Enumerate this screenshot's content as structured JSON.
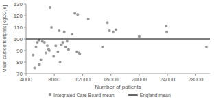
{
  "chart_data": {
    "type": "scatter",
    "x_label": "Number of patients",
    "y_label": "Mean carbon footprint [kgCO₂e]",
    "xlim": [
      4000,
      30000
    ],
    "xticks": [
      4000,
      8000,
      12000,
      16000,
      20000,
      24000,
      28000
    ],
    "ylim": [
      70,
      130
    ],
    "yticks": [
      70,
      80,
      90,
      100,
      110,
      120,
      130
    ],
    "grid": false,
    "legend": "bottom",
    "series": [
      {
        "name": "Integrated Care Board mean",
        "color": "#999999",
        "type": "scatter",
        "marker": "circle",
        "x": [
          5000,
          5200,
          5400,
          5600,
          5800,
          5900,
          6100,
          6300,
          6600,
          6800,
          7000,
          7200,
          7300,
          7400,
          7600,
          7900,
          8200,
          8500,
          8700,
          8800,
          9000,
          9200,
          9400,
          9600,
          9800,
          10000,
          10500,
          10900,
          11200,
          11300,
          11500,
          11600,
          12800,
          14800,
          15500,
          15800,
          16300,
          16700,
          20000,
          23800,
          23900,
          29500
        ],
        "values": [
          86,
          75,
          93,
          97,
          99,
          78,
          82,
          98,
          97,
          88,
          94,
          91,
          90,
          127,
          110,
          85,
          94,
          89,
          107,
          80,
          95,
          97,
          106,
          93,
          98,
          91,
          104,
          122,
          89,
          121,
          88,
          87,
          117,
          93,
          114,
          107,
          106,
          108,
          102,
          111,
          106,
          93
        ]
      },
      {
        "name": "England mean",
        "color": "#000000",
        "type": "line",
        "line_style": "solid",
        "x": [
          4000,
          30000
        ],
        "values": [
          100,
          100
        ]
      }
    ]
  }
}
